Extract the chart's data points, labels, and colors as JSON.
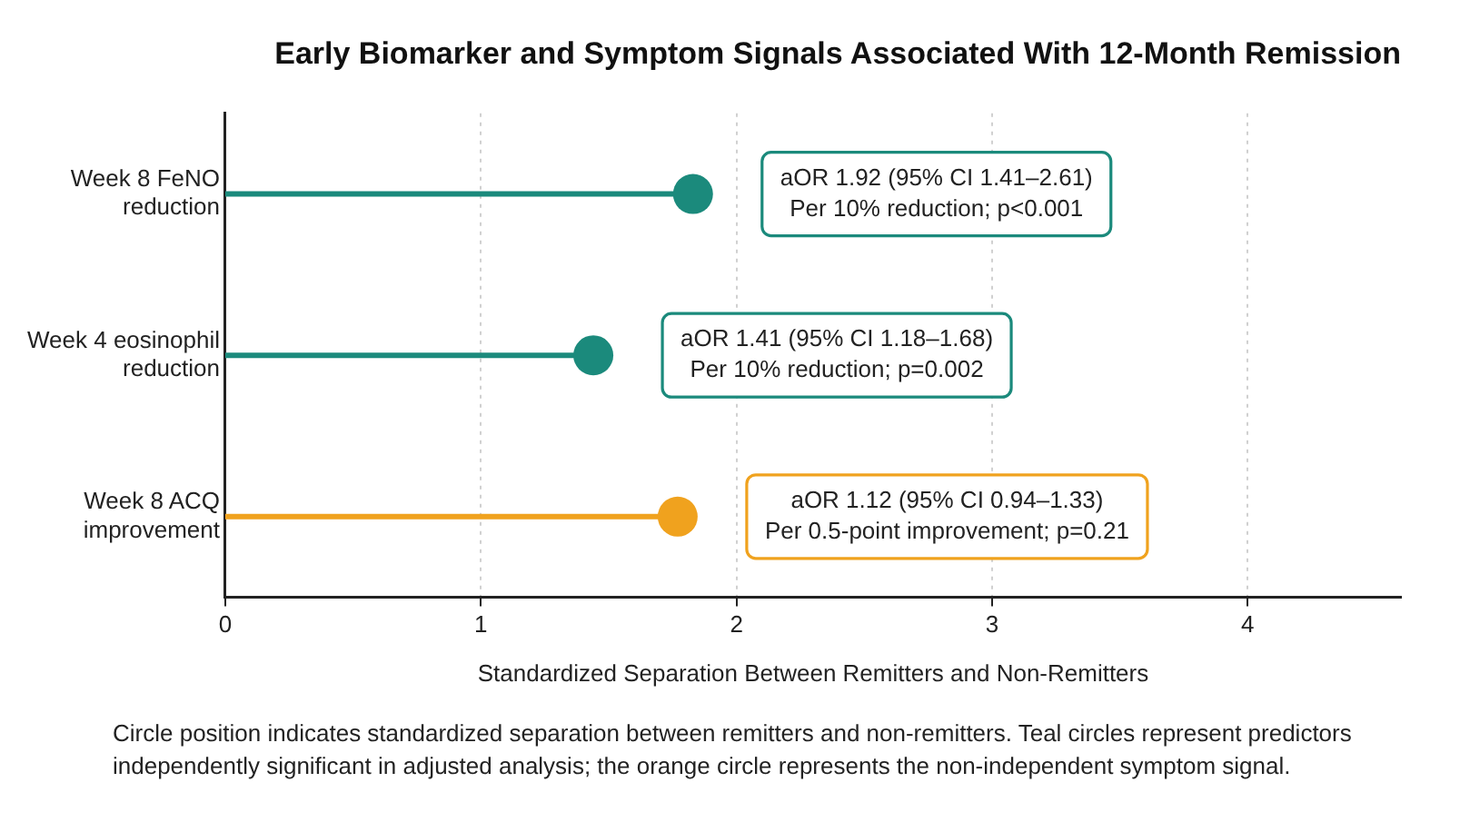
{
  "chart_data": {
    "type": "lollipop",
    "orientation": "horizontal",
    "title": "Early Biomarker and Symptom Signals Associated With 12-Month Remission",
    "xlabel": "Standardized Separation Between Remitters and Non-Remitters",
    "categories": [
      "Week 8 FeNO reduction",
      "Week 4 eosinophil reduction",
      "Week 8 ACQ improvement"
    ],
    "values": [
      1.83,
      1.44,
      1.77
    ],
    "colors": [
      "#1b8a7c",
      "#1b8a7c",
      "#f0a21e"
    ],
    "xlim": [
      0,
      4.6
    ],
    "xticks": [
      0,
      1,
      2,
      3,
      4
    ],
    "grid": "x",
    "marker": "circle",
    "legend": false,
    "annotations": [
      "aOR 1.92 (95% CI 1.41–2.61)\nPer 10% reduction; p<0.001",
      "aOR 1.41 (95% CI 1.18–1.68)\nPer 10% reduction; p=0.002",
      "aOR 1.12 (95% CI 0.94–1.33)\nPer 0.5-point improvement; p=0.21",
      "Circle position indicates standardized separation between remitters and non-remitters. Teal circles represent predictors independently significant in adjusted analysis; the orange circle represents the non-independent symptom signal."
    ]
  }
}
